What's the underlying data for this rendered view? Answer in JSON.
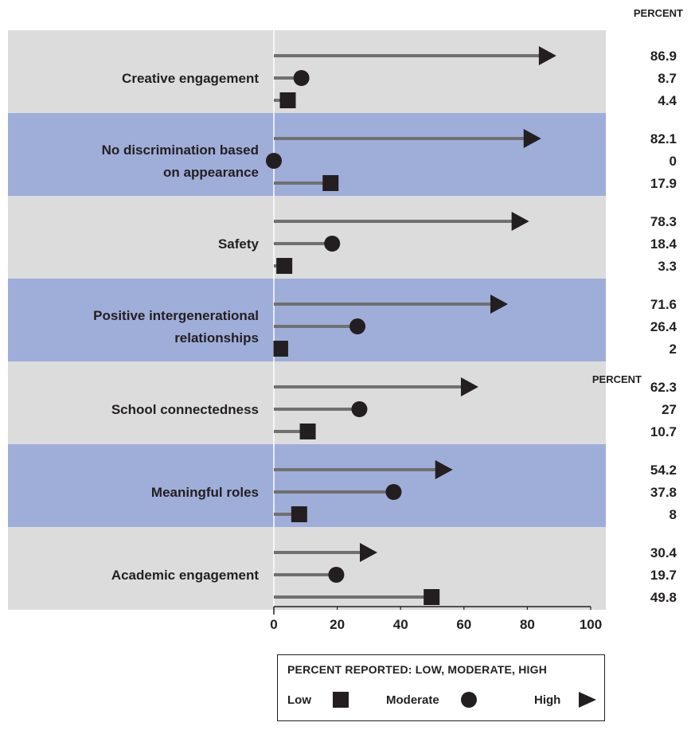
{
  "chart_data": {
    "type": "lollipop",
    "unit_label": "PERCENT",
    "xlim": [
      0,
      100
    ],
    "xticks": [
      "0",
      "20",
      "40",
      "60",
      "80",
      "100"
    ],
    "series": [
      {
        "name": "High",
        "marker": "triangle"
      },
      {
        "name": "Moderate",
        "marker": "circle"
      },
      {
        "name": "Low",
        "marker": "square"
      }
    ],
    "categories": [
      {
        "label": [
          "Creative engagement"
        ],
        "values": {
          "High": 86.9,
          "Moderate": 8.7,
          "Low": 4.4
        },
        "labels": {
          "High": "86.9",
          "Moderate": "8.7",
          "Low": "4.4"
        }
      },
      {
        "label": [
          "No discrimination based",
          "on appearance"
        ],
        "values": {
          "High": 82.1,
          "Moderate": 0,
          "Low": 17.9
        },
        "labels": {
          "High": "82.1",
          "Moderate": "0",
          "Low": "17.9"
        }
      },
      {
        "label": [
          "Safety"
        ],
        "values": {
          "High": 78.3,
          "Moderate": 18.4,
          "Low": 3.3
        },
        "labels": {
          "High": "78.3",
          "Moderate": "18.4",
          "Low": "3.3"
        }
      },
      {
        "label": [
          "Positive intergenerational",
          "relationships"
        ],
        "values": {
          "High": 71.6,
          "Moderate": 26.4,
          "Low": 2
        },
        "labels": {
          "High": "71.6",
          "Moderate": "26.4",
          "Low": "2"
        }
      },
      {
        "label": [
          "School connectedness"
        ],
        "values": {
          "High": 62.3,
          "Moderate": 27,
          "Low": 10.7
        },
        "labels": {
          "High": "62.3",
          "Moderate": "27",
          "Low": "10.7"
        }
      },
      {
        "label": [
          "Meaningful roles"
        ],
        "values": {
          "High": 54.2,
          "Moderate": 37.8,
          "Low": 8
        },
        "labels": {
          "High": "54.2",
          "Moderate": "37.8",
          "Low": "8"
        }
      },
      {
        "label": [
          "Academic engagement"
        ],
        "values": {
          "High": 30.4,
          "Moderate": 19.7,
          "Low": 49.8
        },
        "labels": {
          "High": "30.4",
          "Moderate": "19.7",
          "Low": "49.8"
        }
      }
    ],
    "band_colors": [
      "#dcdcdd",
      "#9fadd9"
    ],
    "bar_color": "#707070",
    "marker_color": "#231f20",
    "legend": {
      "title": "PERCENT REPORTED: LOW,  MODERATE,  HIGH",
      "items": [
        {
          "name": "Low",
          "marker": "square"
        },
        {
          "name": "Moderate",
          "marker": "circle"
        },
        {
          "name": "High",
          "marker": "triangle"
        }
      ]
    }
  }
}
